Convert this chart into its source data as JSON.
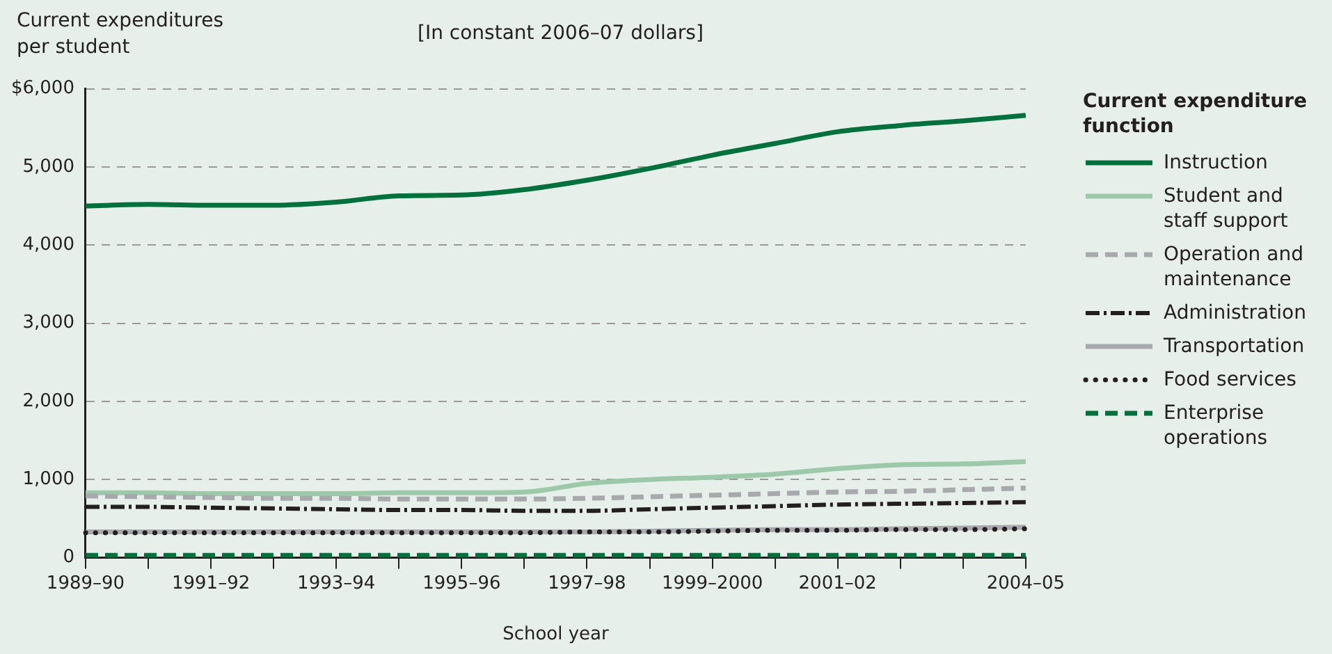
{
  "chart_data": {
    "type": "line",
    "subtitle": "[In constant 2006–07 dollars]",
    "ylabel": "Current expenditures per student",
    "xlabel": "School year",
    "legend_title": "Current expenditure function",
    "categories": [
      "1989–90",
      null,
      "1991–92",
      null,
      "1993–94",
      null,
      "1995–96",
      null,
      "1997–98",
      null,
      "1999–2000",
      null,
      "2001–02",
      null,
      null,
      "2004–05"
    ],
    "series": [
      {
        "name": "Instruction",
        "color": "#00703c",
        "line_style": "solid",
        "values": [
          4500,
          4520,
          4510,
          4510,
          4550,
          4630,
          4640,
          4710,
          4830,
          4980,
          5150,
          5300,
          5450,
          5530,
          5590,
          5660
        ]
      },
      {
        "name": "Student and staff support",
        "color": "#9dc9aa",
        "line_style": "solid",
        "values": [
          830,
          830,
          820,
          820,
          820,
          830,
          830,
          840,
          950,
          1000,
          1030,
          1070,
          1140,
          1190,
          1200,
          1230
        ]
      },
      {
        "name": "Operation and maintenance",
        "color": "#a7a9ac",
        "line_style": "dashed",
        "values": [
          790,
          780,
          770,
          760,
          760,
          750,
          750,
          750,
          760,
          780,
          800,
          820,
          840,
          850,
          870,
          890
        ]
      },
      {
        "name": "Administration",
        "color": "#231f20",
        "line_style": "dashdot",
        "values": [
          650,
          650,
          640,
          630,
          620,
          610,
          610,
          600,
          600,
          620,
          640,
          660,
          680,
          690,
          700,
          710
        ]
      },
      {
        "name": "Transportation",
        "color": "#a7a9ac",
        "line_style": "solid",
        "values": [
          330,
          330,
          330,
          330,
          330,
          330,
          330,
          330,
          330,
          340,
          350,
          360,
          360,
          370,
          380,
          390
        ]
      },
      {
        "name": "Food services",
        "color": "#231f20",
        "line_style": "dotted",
        "values": [
          320,
          320,
          320,
          320,
          320,
          320,
          320,
          320,
          330,
          330,
          340,
          350,
          350,
          360,
          360,
          370
        ]
      },
      {
        "name": "Enterprise operations",
        "color": "#00703c",
        "line_style": "dashed",
        "values": [
          30,
          30,
          30,
          30,
          30,
          30,
          30,
          30,
          30,
          30,
          30,
          30,
          30,
          30,
          30,
          30
        ]
      }
    ],
    "ylim": [
      0,
      6000
    ],
    "yticks": [
      0,
      {
        "value": 1000,
        "label": "1,000"
      },
      {
        "value": 2000,
        "label": "2,000"
      },
      {
        "value": 3000,
        "label": "3,000"
      },
      {
        "value": 4000,
        "label": "4,000"
      },
      {
        "value": 5000,
        "label": "5,000"
      },
      {
        "value": 6000,
        "label": "$6,000"
      }
    ],
    "grid": "y",
    "legend": "right"
  }
}
